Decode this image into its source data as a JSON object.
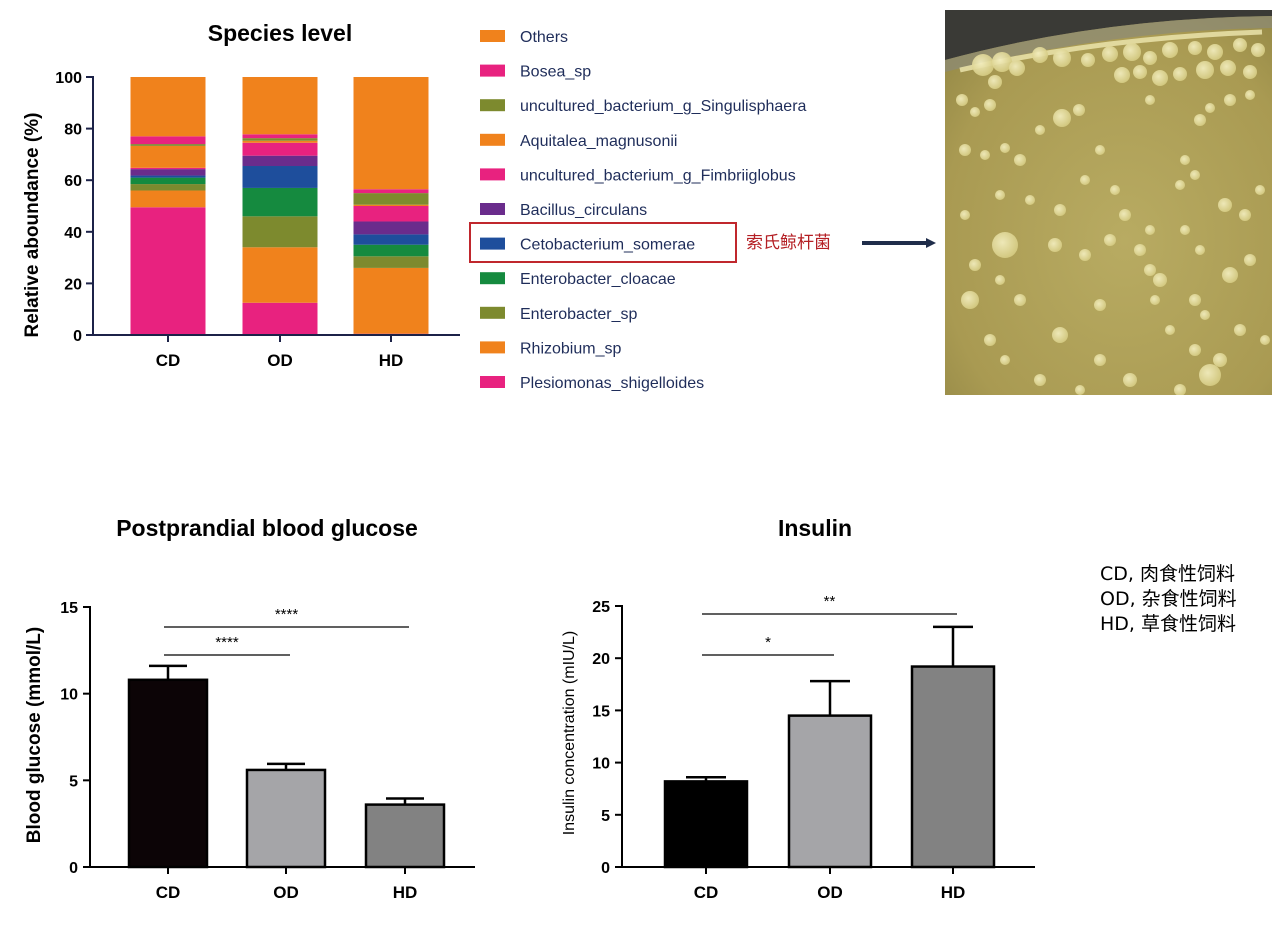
{
  "chart_data": [
    {
      "type": "bar",
      "stacked": true,
      "title": "Species level",
      "ylabel": "Relative aboundance (%)",
      "xlabel": "",
      "ylim": [
        0,
        100
      ],
      "yticks": [
        0,
        20,
        40,
        60,
        80,
        100
      ],
      "categories": [
        "CD",
        "OD",
        "HD"
      ],
      "legend_position": "right",
      "series": [
        {
          "name": "Plesiomonas_shigelloides",
          "color": "#e8227f",
          "values": [
            49.5,
            12.5,
            0.5
          ]
        },
        {
          "name": "Rhizobium_sp",
          "color": "#f0821c",
          "values": [
            6.5,
            21.5,
            25.5
          ]
        },
        {
          "name": "Enterobacter_sp",
          "color": "#7d8a2e",
          "values": [
            2.5,
            12.0,
            4.5
          ]
        },
        {
          "name": "Enterobacter_cloacae",
          "color": "#158a3f",
          "values": [
            2.5,
            11.0,
            4.5
          ]
        },
        {
          "name": "Cetobacterium_somerae",
          "color": "#1e4e9c",
          "values": [
            0.8,
            8.5,
            4.0
          ]
        },
        {
          "name": "Bacillus_circulans",
          "color": "#6a2c8c",
          "values": [
            2.5,
            4.0,
            5.0
          ]
        },
        {
          "name": "uncultured_bacterium_g_Fimbriiglobus",
          "color": "#e8227f",
          "values": [
            0.5,
            5.0,
            6.0
          ]
        },
        {
          "name": "Aquitalea_magnusonii",
          "color": "#f0821c",
          "values": [
            8.5,
            0.8,
            0.5
          ]
        },
        {
          "name": "uncultured_bacterium_g_Singulisphaera",
          "color": "#7d8a2e",
          "values": [
            0.7,
            1.0,
            4.5
          ]
        },
        {
          "name": "Bosea_sp",
          "color": "#e8227f",
          "values": [
            3.0,
            1.5,
            1.5
          ]
        },
        {
          "name": "Others",
          "color": "#f0821c",
          "values": [
            23.0,
            22.2,
            43.5
          ]
        }
      ],
      "highlight": {
        "series": "Cetobacterium_somerae",
        "annotation": "索氏鲸杆菌"
      }
    },
    {
      "type": "bar",
      "title": "Postprandial blood glucose",
      "ylabel": "Blood glucose (mmol/L)",
      "xlabel": "",
      "ylim": [
        0,
        15
      ],
      "yticks": [
        0,
        5,
        10,
        15
      ],
      "categories": [
        "CD",
        "OD",
        "HD"
      ],
      "values": [
        10.8,
        5.6,
        3.6
      ],
      "errors": [
        0.8,
        0.35,
        0.35
      ],
      "colors": [
        "#0c0406",
        "#a5a5a8",
        "#828282"
      ],
      "significance": [
        {
          "from": "CD",
          "to": "OD",
          "label": "****"
        },
        {
          "from": "CD",
          "to": "HD",
          "label": "****"
        }
      ]
    },
    {
      "type": "bar",
      "title": "Insulin",
      "ylabel": "Insulin concentration (mIU/L)",
      "xlabel": "",
      "ylim": [
        0,
        25
      ],
      "yticks": [
        0,
        5,
        10,
        15,
        20,
        25
      ],
      "categories": [
        "CD",
        "OD",
        "HD"
      ],
      "values": [
        8.2,
        14.5,
        19.2
      ],
      "errors": [
        0.4,
        3.3,
        3.8
      ],
      "colors": [
        "#000000",
        "#a5a5a8",
        "#828282"
      ],
      "significance": [
        {
          "from": "CD",
          "to": "OD",
          "label": "*"
        },
        {
          "from": "CD",
          "to": "HD",
          "label": "**"
        }
      ]
    }
  ],
  "notes": [
    "CD, 肉食性饲料",
    "OD, 杂食性饲料",
    "HD, 草食性饲料"
  ],
  "photo": {
    "name": "bacterial-colony-plate",
    "colors": {
      "base": "#b0a35a",
      "colony": "#ece5a8",
      "rim": "#3a3a36"
    }
  }
}
